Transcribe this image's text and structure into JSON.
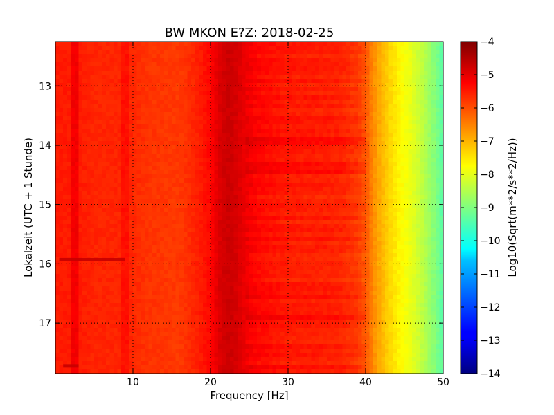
{
  "chart_data": {
    "type": "heatmap",
    "title": "BW MKON E?Z: 2018-02-25",
    "xlabel": "Frequency [Hz]",
    "ylabel": "Lokalzeit (UTC + 1 Stunde)",
    "xlim": [
      0,
      50
    ],
    "ylim": [
      12.25,
      17.85
    ],
    "y_inverted": true,
    "grid": true,
    "colormap": "jet",
    "colorbar": {
      "label": "Log10(Sqrt(m**2/s**2/Hz))",
      "range": [
        -14,
        -4
      ],
      "ticks": [
        "−4",
        "−5",
        "−6",
        "−7",
        "−8",
        "−9",
        "−10",
        "−11",
        "−12",
        "−13",
        "−14"
      ],
      "tick_values": [
        -4,
        -5,
        -6,
        -7,
        -8,
        -9,
        -10,
        -11,
        -12,
        -13,
        -14
      ]
    },
    "x_ticks": [
      "10",
      "20",
      "30",
      "40",
      "50"
    ],
    "x_tick_values": [
      10,
      20,
      30,
      40,
      50
    ],
    "y_ticks": [
      "13",
      "14",
      "15",
      "16",
      "17"
    ],
    "y_tick_values": [
      13,
      14,
      15,
      16,
      17
    ],
    "spectrum_profile": {
      "frequency_hz": [
        0,
        2,
        2.5,
        3,
        5,
        8.5,
        9,
        9.5,
        12,
        16,
        18,
        20,
        21,
        22,
        23,
        24,
        26,
        30,
        35,
        37,
        39,
        40,
        41,
        42,
        43,
        44,
        45,
        46,
        47,
        48,
        49,
        50
      ],
      "log10_psd": [
        -5.5,
        -5.5,
        -4.8,
        -5.5,
        -5.6,
        -5.6,
        -5.2,
        -5.6,
        -5.75,
        -5.8,
        -5.6,
        -5.3,
        -4.95,
        -4.75,
        -4.8,
        -5.0,
        -5.3,
        -5.5,
        -5.55,
        -5.6,
        -5.8,
        -6.1,
        -6.6,
        -7.0,
        -7.3,
        -7.6,
        -7.8,
        -8.0,
        -8.3,
        -8.6,
        -9.0,
        -9.4
      ]
    },
    "events": [
      {
        "time": 15.93,
        "freq_range_hz": [
          0.5,
          9
        ],
        "log10_psd": -4.7
      },
      {
        "time": 17.72,
        "freq_range_hz": [
          1,
          3
        ],
        "log10_psd": -4.7
      }
    ]
  }
}
